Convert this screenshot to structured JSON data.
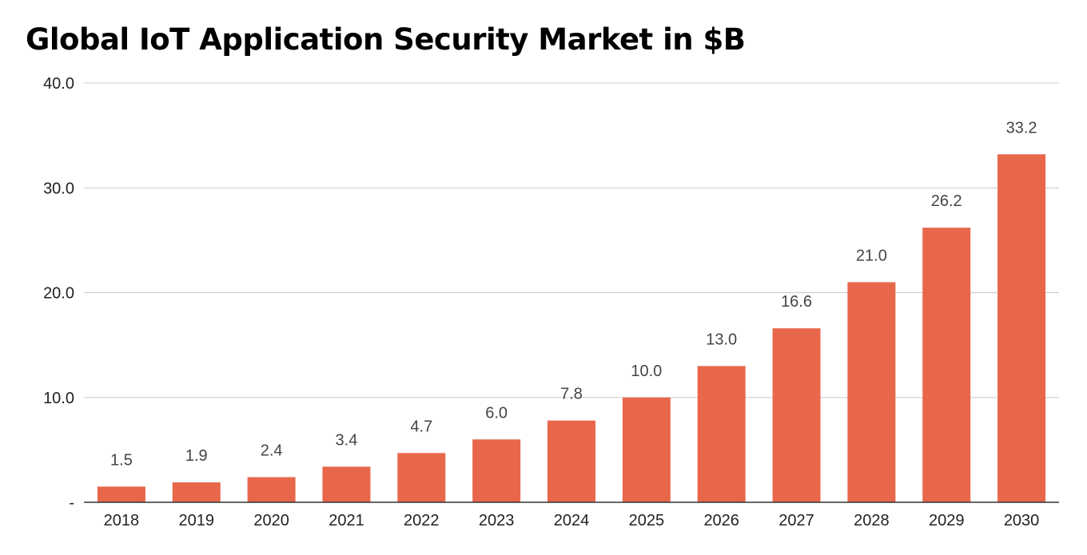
{
  "chart_data": {
    "type": "bar",
    "title": "Global IoT Application Security Market in $B",
    "xlabel": "",
    "ylabel": "",
    "categories": [
      "2018",
      "2019",
      "2020",
      "2021",
      "2022",
      "2023",
      "2024",
      "2025",
      "2026",
      "2027",
      "2028",
      "2029",
      "2030"
    ],
    "values": [
      1.5,
      1.9,
      2.4,
      3.4,
      4.7,
      6.0,
      7.8,
      10.0,
      13.0,
      16.6,
      21.0,
      26.2,
      33.2
    ],
    "data_labels": [
      "1.5",
      "1.9",
      "2.4",
      "3.4",
      "4.7",
      "6.0",
      "7.8",
      "10.0",
      "13.0",
      "16.6",
      "21.0",
      "26.2",
      "33.2"
    ],
    "ylim": [
      0,
      40
    ],
    "y_ticks": [
      0,
      10,
      20,
      30,
      40
    ],
    "y_tick_labels": [
      "-",
      "10.0",
      "20.0",
      "30.0",
      "40.0"
    ],
    "grid": true,
    "legend": "none",
    "bar_color": "#E8674A",
    "grid_color": "#CCCCCC",
    "axis_color": "#333333"
  }
}
